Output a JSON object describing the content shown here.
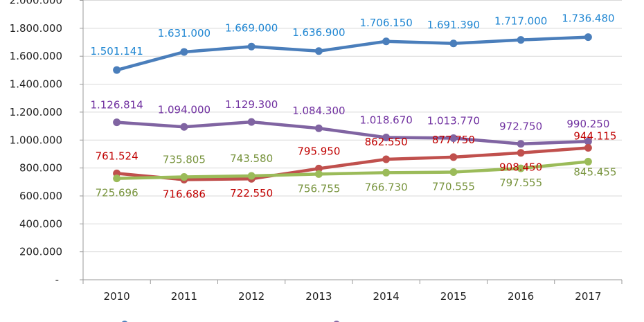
{
  "chart_data": {
    "type": "line",
    "title": "",
    "xlabel": "",
    "ylabel": "",
    "categories": [
      "2010",
      "2011",
      "2012",
      "2013",
      "2014",
      "2015",
      "2016",
      "2017"
    ],
    "ylim": [
      0,
      2000000
    ],
    "ytick_labels": [
      "-",
      "200.000",
      "400.000",
      "600.000",
      "800.000",
      "1.000.000",
      "1.200.000",
      "1.400.000",
      "1.600.000",
      "1.800.000",
      "2.000.000"
    ],
    "grid": true,
    "legend": "bottom",
    "series": [
      {
        "line_color": "#4a7ebb",
        "label_color": "#1f86d2",
        "values": [
          1501141,
          1631000,
          1669000,
          1636900,
          1706150,
          1691390,
          1717000,
          1736480
        ],
        "labels": [
          "1.501.141",
          "1.631.000",
          "1.669.000",
          "1.636.900",
          "1.706.150",
          "1.691.390",
          "1.717.000",
          "1.736.480"
        ]
      },
      {
        "line_color": "#8064a2",
        "label_color": "#7030a0",
        "values": [
          1126814,
          1094000,
          1129300,
          1084300,
          1018670,
          1013770,
          972750,
          990250
        ],
        "labels": [
          "1.126.814",
          "1.094.000",
          "1.129.300",
          "1.084.300",
          "1.018.670",
          "1.013.770",
          "972.750",
          "990.250"
        ]
      },
      {
        "line_color": "#c0504d",
        "label_color": "#c00000",
        "values": [
          761524,
          716686,
          722550,
          795950,
          862550,
          877750,
          908450,
          944115
        ],
        "labels": [
          "761.524",
          "716.686",
          "722.550",
          "795.950",
          "862.550",
          "877.750",
          "908.450",
          "944.115"
        ]
      },
      {
        "line_color": "#9bbb59",
        "label_color": "#77933c",
        "values": [
          725696,
          735805,
          743580,
          756755,
          766730,
          770555,
          797555,
          845455
        ],
        "labels": [
          "725.696",
          "735.805",
          "743.580",
          "756.755",
          "766.730",
          "770.555",
          "797.555",
          "845.455"
        ]
      }
    ]
  }
}
